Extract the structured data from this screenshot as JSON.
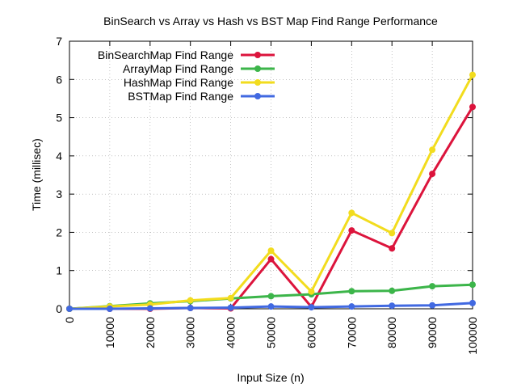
{
  "chart_data": {
    "type": "line",
    "title": "BinSearch vs Array vs Hash vs BST Map Find Range Performance",
    "xlabel": "Input Size (n)",
    "ylabel": "Time (millisec)",
    "x": [
      0,
      10000,
      20000,
      30000,
      40000,
      50000,
      60000,
      70000,
      80000,
      90000,
      100000
    ],
    "xlim": [
      0,
      100000
    ],
    "ylim": [
      0,
      7
    ],
    "yticks": [
      0,
      1,
      2,
      3,
      4,
      5,
      6,
      7
    ],
    "grid": true,
    "legend_position": "top-left",
    "series": [
      {
        "name": "BinSearchMap Find Range",
        "color": "#dc143c",
        "values": [
          0.0,
          0.0,
          0.0,
          0.02,
          0.01,
          1.3,
          0.05,
          2.05,
          1.58,
          3.53,
          5.28
        ]
      },
      {
        "name": "ArrayMap Find Range",
        "color": "#3cb54a",
        "values": [
          0.0,
          0.07,
          0.14,
          0.2,
          0.27,
          0.33,
          0.38,
          0.46,
          0.47,
          0.59,
          0.63
        ]
      },
      {
        "name": "HashMap Find Range",
        "color": "#f2dc1e",
        "values": [
          0.0,
          0.06,
          0.11,
          0.22,
          0.28,
          1.52,
          0.45,
          2.51,
          1.98,
          4.16,
          6.12
        ]
      },
      {
        "name": "BSTMap Find Range",
        "color": "#4169e1",
        "values": [
          0.0,
          0.0,
          0.01,
          0.02,
          0.03,
          0.06,
          0.04,
          0.06,
          0.08,
          0.09,
          0.15
        ]
      }
    ]
  }
}
